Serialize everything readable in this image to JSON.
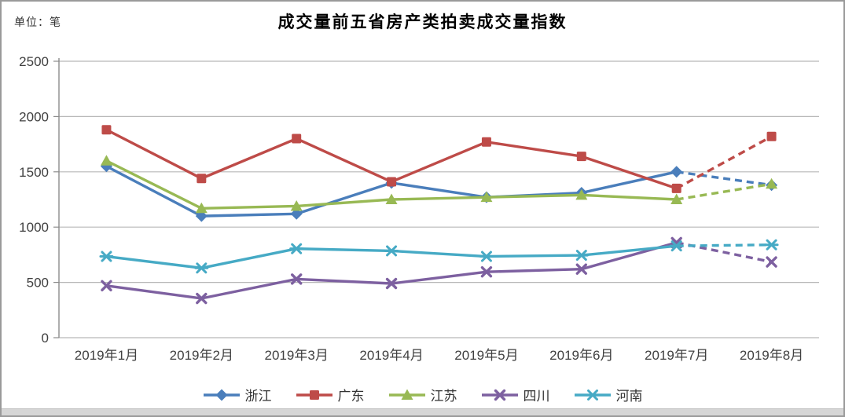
{
  "page": {
    "unit_label": "单位：笔",
    "title": "成交量前五省房产类拍卖成交量指数"
  },
  "chart_data": {
    "type": "line",
    "title": "成交量前五省房产类拍卖成交量指数",
    "unit": "单位：笔",
    "categories": [
      "2019年1月",
      "2019年2月",
      "2019年3月",
      "2019年4月",
      "2019年5月",
      "2019年6月",
      "2019年7月",
      "2019年8月"
    ],
    "series": [
      {
        "id": "zhejiang",
        "name": "浙江",
        "color": "#4A7EBB",
        "marker": "diamond",
        "values": [
          1550,
          1100,
          1120,
          1400,
          1270,
          1310,
          1500,
          1380
        ]
      },
      {
        "id": "guangdong",
        "name": "广东",
        "color": "#BE4B48",
        "marker": "square",
        "values": [
          1880,
          1440,
          1800,
          1410,
          1770,
          1640,
          1350,
          1820
        ]
      },
      {
        "id": "jiangsu",
        "name": "江苏",
        "color": "#98B954",
        "marker": "triangle",
        "values": [
          1600,
          1170,
          1190,
          1250,
          1270,
          1290,
          1250,
          1390
        ]
      },
      {
        "id": "sichuan",
        "name": "四川",
        "color": "#7D60A0",
        "marker": "x",
        "values": [
          470,
          355,
          530,
          490,
          595,
          620,
          860,
          685
        ]
      },
      {
        "id": "henan",
        "name": "河南",
        "color": "#46AAC5",
        "marker": "asterisk",
        "values": [
          735,
          630,
          805,
          785,
          735,
          745,
          830,
          840
        ]
      }
    ],
    "dashed_from_index": 6,
    "ylim": [
      0,
      2500
    ],
    "yticks": [
      0,
      500,
      1000,
      1500,
      2000,
      2500
    ],
    "grid": "horizontal",
    "legend_position": "bottom"
  }
}
